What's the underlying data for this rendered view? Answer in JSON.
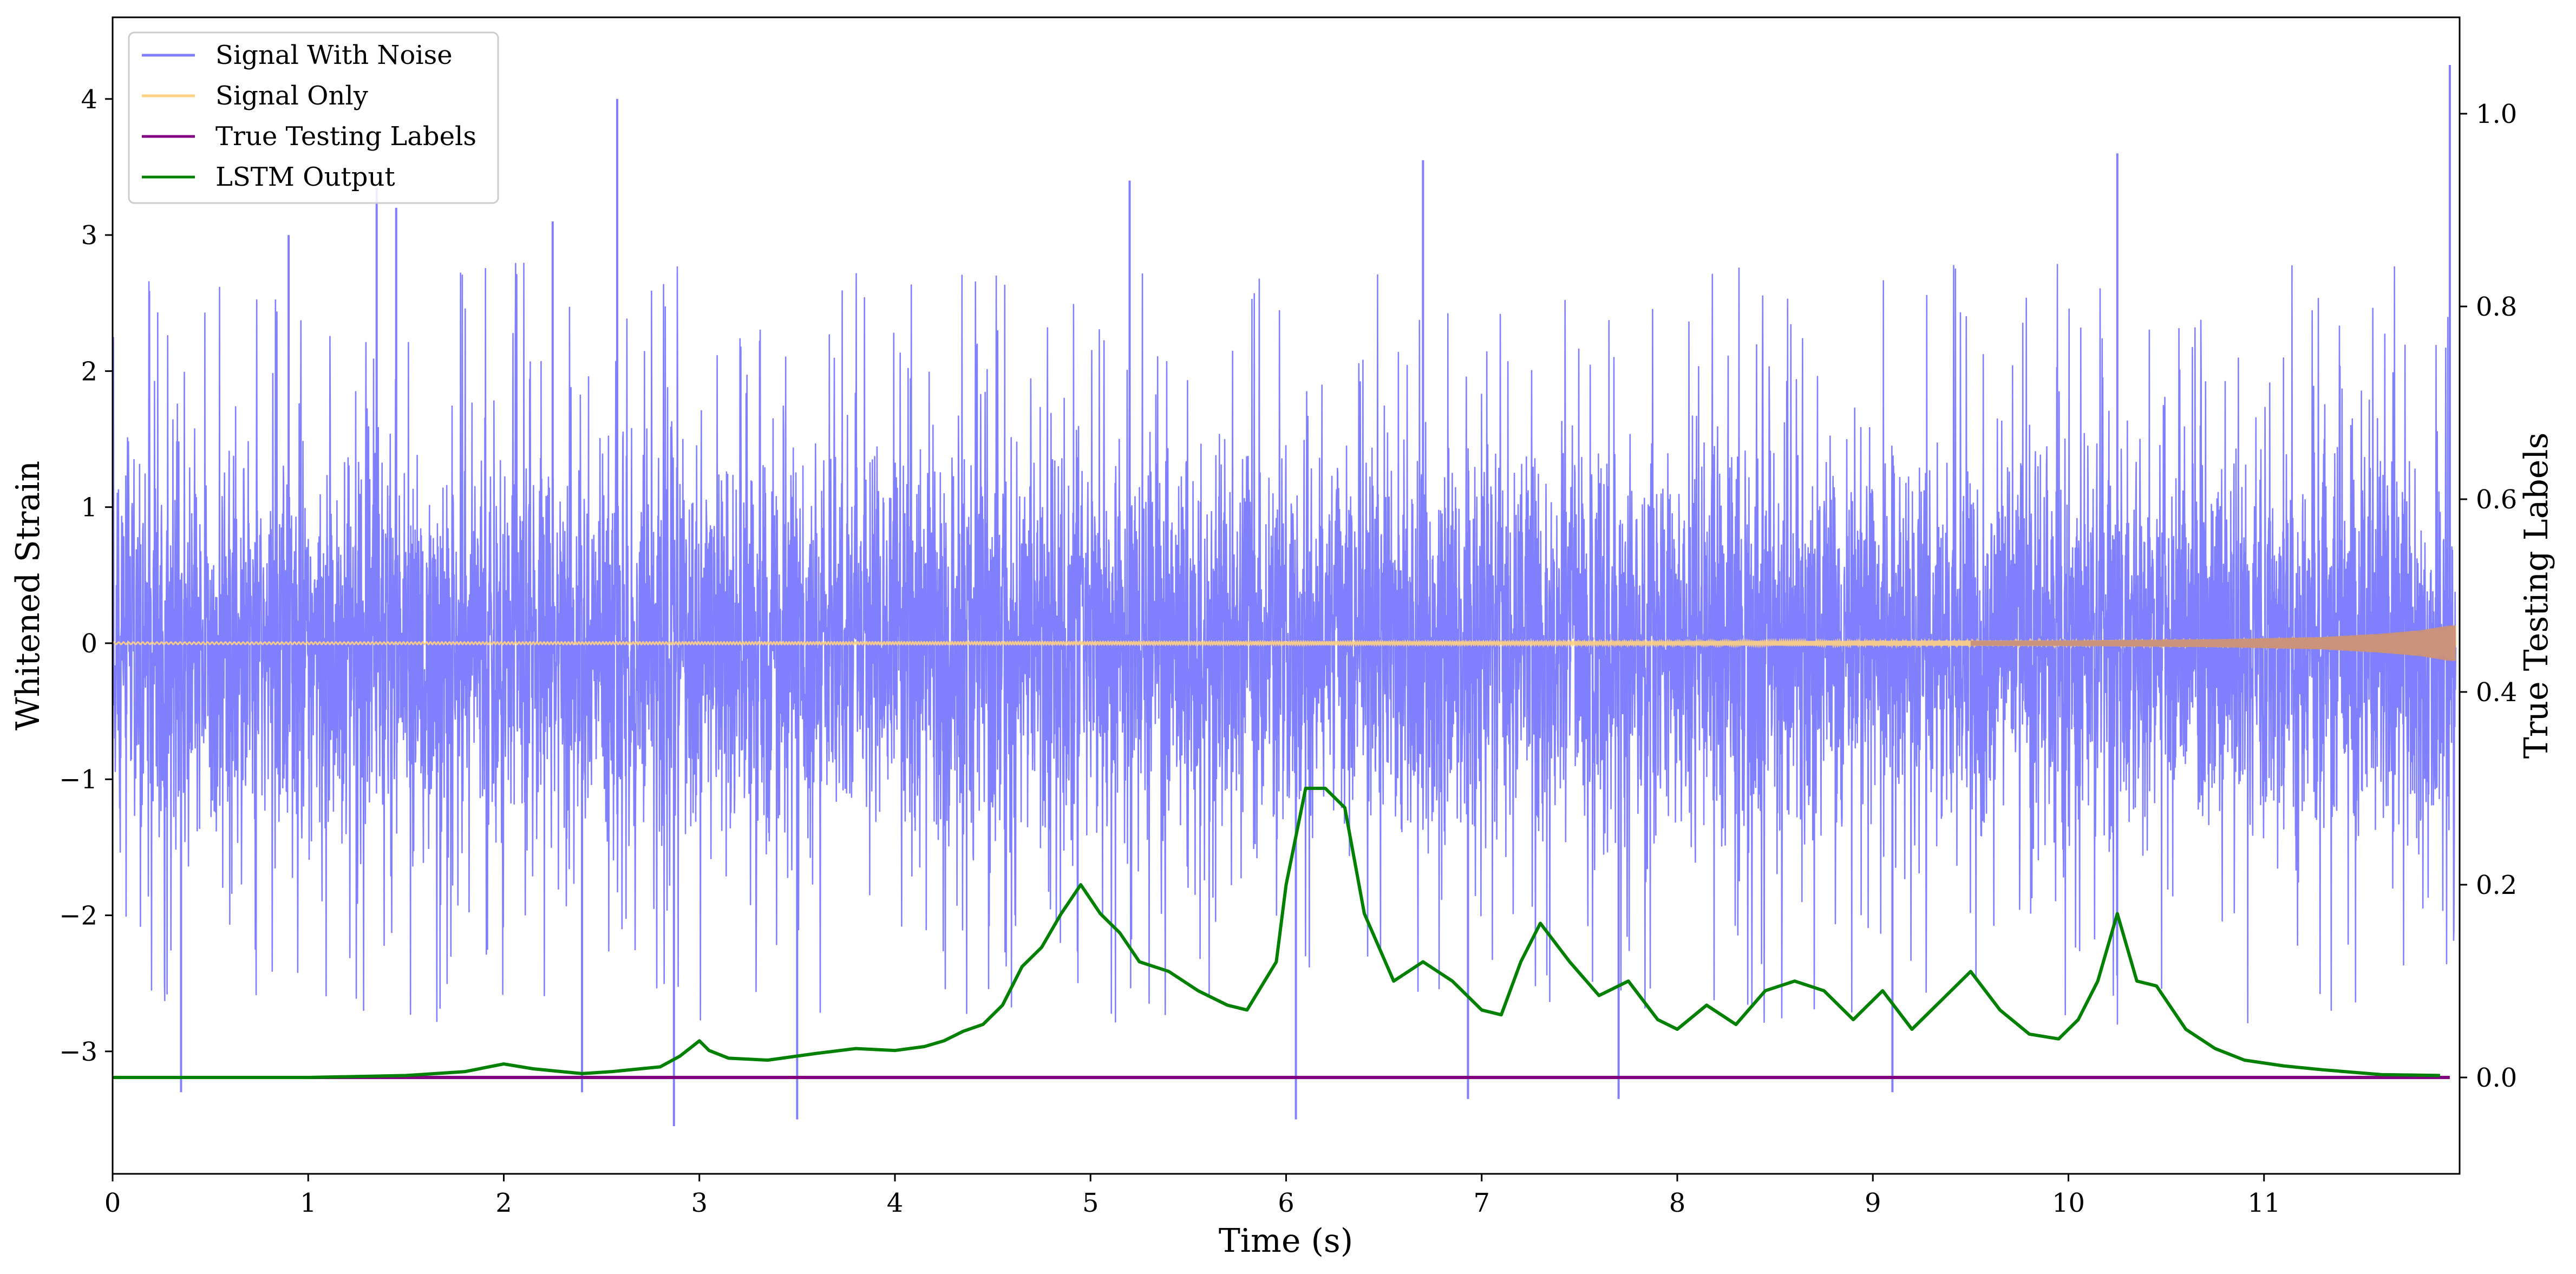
{
  "chart_data": {
    "type": "line",
    "title": "",
    "xlabel": "Time (s)",
    "ylabel_left": "Whitened Strain",
    "ylabel_right": "True Testing Labels",
    "xlim": [
      0,
      12
    ],
    "ylim_left": [
      -3.9,
      4.6
    ],
    "ylim_right": [
      -0.1,
      1.1
    ],
    "x_ticks": [
      0,
      1,
      2,
      3,
      4,
      5,
      6,
      7,
      8,
      9,
      10,
      11
    ],
    "x_tick_labels": [
      "0",
      "1",
      "2",
      "3",
      "4",
      "5",
      "6",
      "7",
      "8",
      "9",
      "10",
      "11"
    ],
    "y_left_ticks": [
      -3,
      -2,
      -1,
      0,
      1,
      2,
      3,
      4
    ],
    "y_left_tick_labels": [
      "−3",
      "−2",
      "−1",
      "0",
      "1",
      "2",
      "3",
      "4"
    ],
    "y_right_ticks": [
      0.0,
      0.2,
      0.4,
      0.6,
      0.8,
      1.0
    ],
    "y_right_tick_labels": [
      "0.0",
      "0.2",
      "0.4",
      "0.6",
      "0.8",
      "1.0"
    ],
    "grid": false,
    "legend_position": "top-left",
    "series": [
      {
        "name": "Signal With Noise",
        "axis": "left",
        "color": "#8080ff",
        "style": "dense noise, bulk within about ±1.5, spikes to about ±3.5",
        "spikes": [
          {
            "x": 0.35,
            "y": -3.3
          },
          {
            "x": 0.9,
            "y": 3.0
          },
          {
            "x": 1.35,
            "y": 3.35
          },
          {
            "x": 1.45,
            "y": 3.2
          },
          {
            "x": 2.25,
            "y": 3.1
          },
          {
            "x": 2.58,
            "y": 4.0
          },
          {
            "x": 2.87,
            "y": -3.55
          },
          {
            "x": 3.5,
            "y": -3.5
          },
          {
            "x": 2.4,
            "y": -3.3
          },
          {
            "x": 5.2,
            "y": 3.4
          },
          {
            "x": 6.05,
            "y": -3.5
          },
          {
            "x": 6.7,
            "y": 3.55
          },
          {
            "x": 6.93,
            "y": -3.35
          },
          {
            "x": 7.7,
            "y": -3.35
          },
          {
            "x": 9.1,
            "y": -3.3
          },
          {
            "x": 10.25,
            "y": 3.6
          },
          {
            "x": 11.95,
            "y": 4.25
          }
        ]
      },
      {
        "name": "Signal Only",
        "axis": "left",
        "color": "#ffd080",
        "envelope": {
          "x": [
            0,
            4,
            8,
            10,
            10.8,
            11.3,
            11.6,
            11.8,
            11.95
          ],
          "amp": [
            0.008,
            0.01,
            0.014,
            0.02,
            0.03,
            0.045,
            0.07,
            0.095,
            0.13
          ]
        }
      },
      {
        "name": "True Testing Labels",
        "axis": "right",
        "color": "#800080",
        "x": [
          0,
          11.95
        ],
        "values": [
          0.0,
          0.0
        ]
      },
      {
        "name": "LSTM Output",
        "axis": "right",
        "color": "#008000",
        "x": [
          0,
          1.0,
          1.5,
          1.8,
          1.95,
          2.0,
          2.15,
          2.4,
          2.55,
          2.8,
          2.9,
          3.0,
          3.05,
          3.15,
          3.35,
          3.6,
          3.8,
          4.0,
          4.15,
          4.25,
          4.35,
          4.45,
          4.55,
          4.65,
          4.75,
          4.85,
          4.95,
          5.05,
          5.15,
          5.25,
          5.4,
          5.55,
          5.7,
          5.8,
          5.95,
          6.0,
          6.1,
          6.2,
          6.3,
          6.4,
          6.55,
          6.7,
          6.85,
          7.0,
          7.1,
          7.2,
          7.3,
          7.45,
          7.6,
          7.75,
          7.9,
          8.0,
          8.15,
          8.3,
          8.45,
          8.6,
          8.75,
          8.9,
          9.05,
          9.2,
          9.35,
          9.5,
          9.65,
          9.8,
          9.95,
          10.05,
          10.15,
          10.25,
          10.35,
          10.45,
          10.6,
          10.75,
          10.9,
          11.1,
          11.3,
          11.6,
          11.9
        ],
        "values": [
          0.0,
          0.0,
          0.002,
          0.006,
          0.012,
          0.014,
          0.009,
          0.004,
          0.006,
          0.011,
          0.022,
          0.038,
          0.028,
          0.02,
          0.018,
          0.025,
          0.03,
          0.028,
          0.032,
          0.038,
          0.048,
          0.055,
          0.075,
          0.115,
          0.135,
          0.17,
          0.2,
          0.17,
          0.15,
          0.12,
          0.11,
          0.09,
          0.075,
          0.07,
          0.12,
          0.2,
          0.3,
          0.3,
          0.28,
          0.17,
          0.1,
          0.12,
          0.1,
          0.07,
          0.065,
          0.12,
          0.16,
          0.12,
          0.085,
          0.1,
          0.06,
          0.05,
          0.075,
          0.055,
          0.09,
          0.1,
          0.09,
          0.06,
          0.09,
          0.05,
          0.08,
          0.11,
          0.07,
          0.045,
          0.04,
          0.06,
          0.1,
          0.17,
          0.1,
          0.095,
          0.05,
          0.03,
          0.018,
          0.012,
          0.008,
          0.003,
          0.002
        ]
      }
    ]
  }
}
